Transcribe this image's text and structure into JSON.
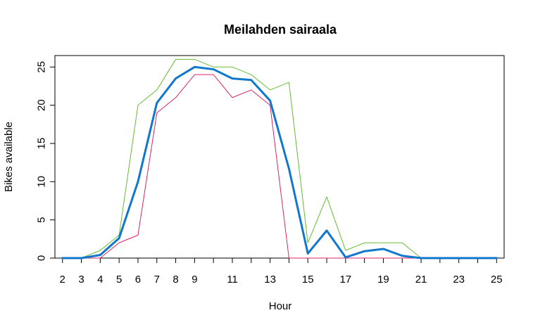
{
  "chart_data": {
    "type": "line",
    "title": "Meilahden sairaala",
    "xlabel": "Hour",
    "ylabel": "Bikes available",
    "xlim": [
      1.6,
      25.4
    ],
    "ylim": [
      0,
      26.5
    ],
    "x_ticks": [
      2,
      3,
      4,
      5,
      6,
      7,
      8,
      9,
      10,
      11,
      12,
      13,
      14,
      15,
      16,
      17,
      18,
      19,
      20,
      21,
      22,
      23,
      24,
      25
    ],
    "x_tick_labels": [
      "2",
      "3",
      "4",
      "5",
      "6",
      "7",
      "8",
      "9",
      "",
      "11",
      "",
      "13",
      "",
      "15",
      "",
      "17",
      "",
      "19",
      "",
      "21",
      "",
      "23",
      "",
      "25"
    ],
    "y_ticks": [
      0,
      5,
      10,
      15,
      20,
      25
    ],
    "y_tick_labels": [
      "0",
      "5",
      "10",
      "15",
      "20",
      "25"
    ],
    "grid": false,
    "legend": false,
    "x": [
      2,
      3,
      4,
      5,
      6,
      7,
      8,
      9,
      10,
      11,
      12,
      13,
      14,
      15,
      16,
      17,
      18,
      19,
      20,
      21,
      22,
      23,
      24,
      25
    ],
    "series": [
      {
        "color": "#66bb33",
        "line_width": 1,
        "values": [
          0,
          0,
          1,
          3,
          20,
          22,
          26,
          26,
          25,
          25,
          24,
          22,
          23,
          2,
          8,
          1,
          2,
          2,
          2,
          0,
          0,
          0,
          0,
          0
        ]
      },
      {
        "color": "#dd2266",
        "line_width": 1,
        "values": [
          0,
          0,
          0,
          2,
          3,
          19,
          21,
          24,
          24,
          21,
          22,
          20,
          0,
          0,
          0,
          0,
          0,
          0,
          0,
          0,
          0,
          0,
          0,
          0
        ]
      },
      {
        "color": "#1177cc",
        "line_width": 3,
        "values": [
          0,
          0,
          0.4,
          2.6,
          10,
          20.3,
          23.5,
          25,
          24.7,
          23.5,
          23.3,
          20.6,
          11.7,
          0.6,
          3.6,
          0.1,
          0.9,
          1.2,
          0.3,
          0,
          0,
          0,
          0,
          0
        ]
      }
    ]
  }
}
